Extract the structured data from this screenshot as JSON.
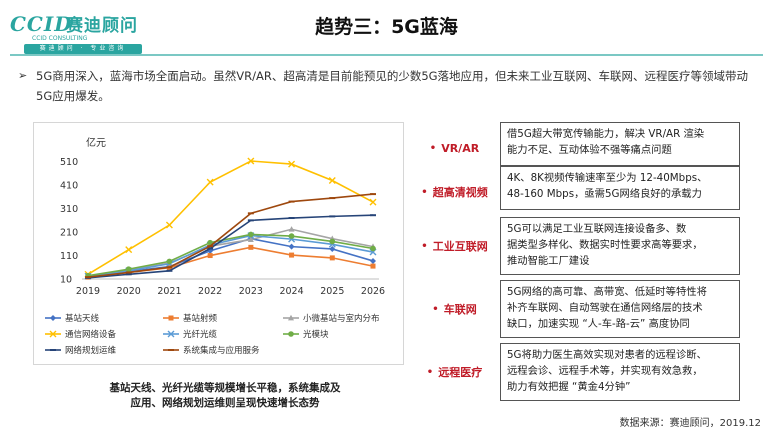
{
  "logo": {
    "mark": "CCID",
    "name": "赛迪顾问",
    "sub": "CCID CONSULTING",
    "bar": "赛迪顾问 · 专业咨询"
  },
  "title": "趋势三：5G蓝海",
  "intro": "5G商用深入，蓝海市场全面启动。虽然VR/AR、超高清是目前能预见的少数5G落地应用，但未来工业互联网、车联网、远程医疗等领域带动5G应用爆发。",
  "chart_data": {
    "type": "line",
    "x": [
      "2019",
      "2020",
      "2021",
      "2022",
      "2023",
      "2024",
      "2025",
      "2026"
    ],
    "ylabel": "亿元",
    "ylim": [
      10,
      560
    ],
    "yticks": [
      10,
      110,
      210,
      310,
      410,
      510
    ],
    "series": [
      {
        "name": "基站天线",
        "color": "#4472c4",
        "marker": "diamond",
        "values": [
          20,
          42,
          63,
          130,
          182,
          148,
          138,
          87
        ]
      },
      {
        "name": "基站射频",
        "color": "#ed7d31",
        "marker": "square",
        "values": [
          18,
          38,
          58,
          110,
          145,
          112,
          100,
          65
        ]
      },
      {
        "name": "小微基站与室内分布",
        "color": "#a5a5a5",
        "marker": "triangle",
        "values": [
          22,
          48,
          78,
          150,
          178,
          222,
          182,
          148
        ]
      },
      {
        "name": "通信网络设备",
        "color": "#ffc000",
        "marker": "x",
        "values": [
          30,
          135,
          240,
          423,
          513,
          500,
          430,
          338
        ]
      },
      {
        "name": "光纤光缆",
        "color": "#5b9bd5",
        "marker": "x",
        "values": [
          22,
          45,
          75,
          155,
          195,
          180,
          158,
          125
        ]
      },
      {
        "name": "光模块",
        "color": "#70ad47",
        "marker": "circle",
        "values": [
          24,
          52,
          85,
          165,
          200,
          193,
          170,
          140
        ]
      },
      {
        "name": "网络规划运维",
        "color": "#264478",
        "marker": "dash",
        "values": [
          15,
          30,
          45,
          140,
          260,
          270,
          277,
          282
        ]
      },
      {
        "name": "系统集成与应用服务",
        "color": "#9e480e",
        "marker": "dash",
        "values": [
          18,
          38,
          60,
          150,
          290,
          340,
          355,
          372
        ]
      }
    ]
  },
  "caption": [
    "基站天线、光纤光缆等规模增长平稳，系统集成及",
    "应用、网络规划运维则呈现快速增长态势"
  ],
  "rows": [
    {
      "label": "VR/AR",
      "lines": [
        "借5G超大带宽传输能力，解决 VR/AR 渲染",
        "能力不足、互动体验不强等痛点问题"
      ]
    },
    {
      "label": "超高清视频",
      "lines": [
        "4K、8K视频传输速率至少为 12-40Mbps、",
        "48-160 Mbps，亟需5G网络良好的承载力"
      ]
    },
    {
      "label": "工业互联网",
      "lines": [
        "5G可以满足工业互联网连接设备多、数",
        "据类型多样化、数据实时性要求高等要求，",
        "推动智能工厂建设"
      ]
    },
    {
      "label": "车联网",
      "lines": [
        "5G网络的高可靠、高带宽、低延时等特性将",
        "补齐车联网、自动驾驶在通信网络层的技术",
        "缺口，加速实现 “人-车-路-云” 高度协同"
      ]
    },
    {
      "label": "远程医疗",
      "lines": [
        "5G将助力医生高效实现对患者的远程诊断、",
        "远程会诊、远程手术等，并实现有效急救，",
        "助力有效把握 “黄金4分钟”"
      ]
    }
  ],
  "source": "数据来源：赛迪顾问，2019.12"
}
